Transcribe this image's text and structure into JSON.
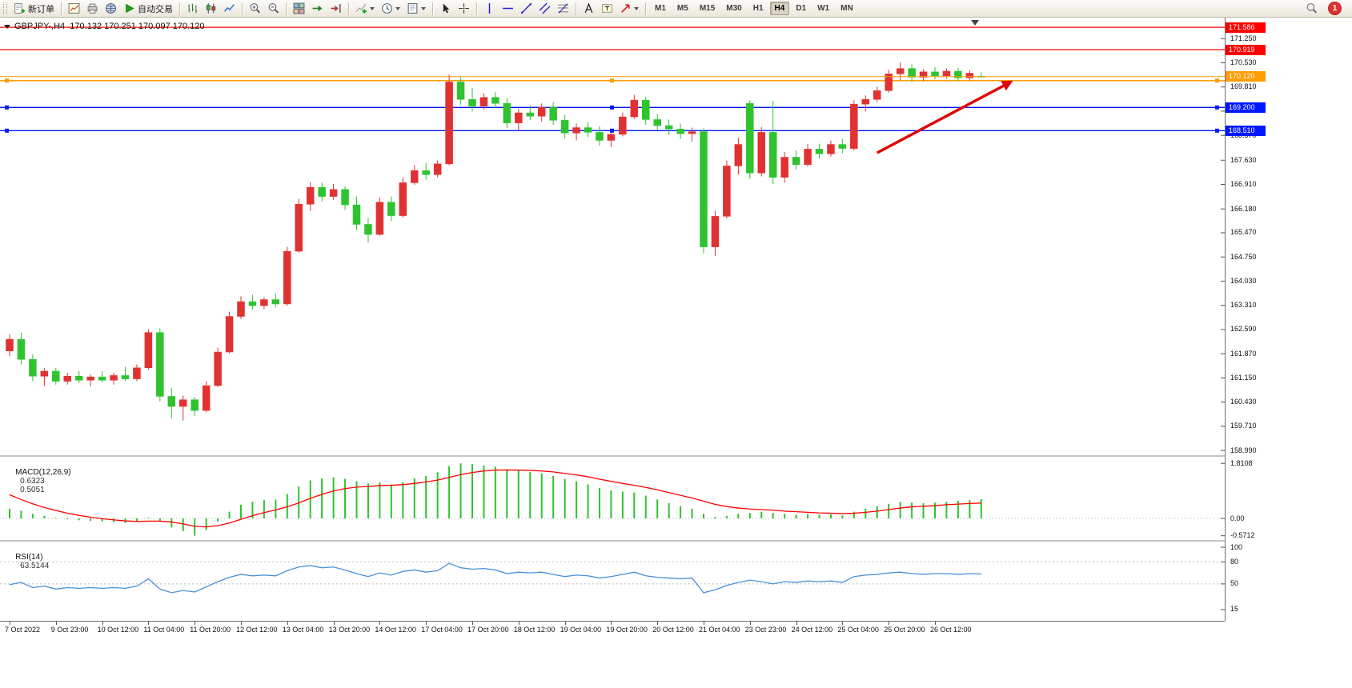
{
  "toolbar": {
    "new_order_label": "新订单",
    "auto_trading_label": "自动交易",
    "notification_count": "1",
    "active_timeframe": "H4",
    "timeframes": [
      {
        "label": "M1"
      },
      {
        "label": "M5"
      },
      {
        "label": "M15"
      },
      {
        "label": "M30"
      },
      {
        "label": "H1"
      },
      {
        "label": "H4"
      },
      {
        "label": "D1"
      },
      {
        "label": "W1"
      },
      {
        "label": "MN"
      }
    ],
    "groups": [
      {
        "items": [
          {
            "name": "new-order-button",
            "icon": "new-order-icon",
            "label": "新订单"
          }
        ]
      },
      {
        "items": [
          {
            "name": "new-chart-button",
            "icon": "chart-window-icon"
          },
          {
            "name": "print-button",
            "icon": "printer-icon"
          },
          {
            "name": "full-screen-button",
            "icon": "globe-icon"
          },
          {
            "name": "auto-trading-button",
            "icon": "play-icon",
            "label": "自动交易"
          }
        ]
      },
      {
        "items": [
          {
            "name": "bar-chart-button",
            "icon": "bar-chart-icon"
          },
          {
            "name": "candlestick-chart-button",
            "icon": "candlestick-icon"
          },
          {
            "name": "line-chart-button",
            "icon": "line-chart-icon"
          }
        ]
      },
      {
        "items": [
          {
            "name": "zoom-in-button",
            "icon": "zoom-in-icon"
          },
          {
            "name": "zoom-out-button",
            "icon": "zoom-out-icon"
          }
        ]
      },
      {
        "items": [
          {
            "name": "tile-windows-button",
            "icon": "tile-windows-icon"
          },
          {
            "name": "auto-scroll-button",
            "icon": "auto-scroll-icon"
          },
          {
            "name": "chart-shift-button",
            "icon": "chart-shift-icon"
          }
        ]
      },
      {
        "items": [
          {
            "name": "indicators-button",
            "icon": "indicators-icon",
            "dropdown": true
          },
          {
            "name": "periods-button",
            "icon": "clock-icon",
            "dropdown": true
          },
          {
            "name": "templates-button",
            "icon": "template-icon",
            "dropdown": true
          }
        ]
      },
      {
        "items": [
          {
            "name": "cursor-button",
            "icon": "cursor-icon"
          },
          {
            "name": "crosshair-button",
            "icon": "crosshair-icon"
          }
        ]
      },
      {
        "items": [
          {
            "name": "vertical-line-button",
            "icon": "vertical-line-icon"
          },
          {
            "name": "horizontal-line-button",
            "icon": "horizontal-line-icon"
          },
          {
            "name": "trendline-button",
            "icon": "trendline-icon"
          },
          {
            "name": "channel-button",
            "icon": "channel-icon"
          },
          {
            "name": "fibonacci-button",
            "icon": "fibonacci-icon"
          }
        ]
      },
      {
        "items": [
          {
            "name": "text-button",
            "icon": "text-icon"
          },
          {
            "name": "text-label-button",
            "icon": "text-label-icon"
          },
          {
            "name": "arrows-button",
            "icon": "arrow-icon",
            "dropdown": true
          }
        ]
      }
    ]
  },
  "colors": {
    "bull": "#e03232",
    "bear": "#2fc32f",
    "line_red": "#ff0000",
    "line_blue": "#0018ff",
    "line_orange": "#ff9c00",
    "macd_histogram": "#2fc32f",
    "macd_signal": "#ff0000",
    "rsi_line": "#4a90d9",
    "arrow": "#e00000"
  },
  "chart_data": {
    "type": "candlestick",
    "symbol": "GBPJPY-",
    "period": "H4",
    "title_text": "GBPJPY-,H4  170.132 170.251 170.097 170.120",
    "ohlc_display": {
      "open": "170.132",
      "high": "170.251",
      "low": "170.097",
      "close": "170.120"
    },
    "bars_per_label": 4,
    "time_labels": [
      "7 Oct 2022",
      "9 Oct 23:00",
      "10 Oct 12:00",
      "11 Oct 04:00",
      "11 Oct 20:00",
      "12 Oct 12:00",
      "13 Oct 04:00",
      "13 Oct 20:00",
      "14 Oct 12:00",
      "17 Oct 04:00",
      "17 Oct 20:00",
      "18 Oct 12:00",
      "19 Oct 04:00",
      "19 Oct 20:00",
      "20 Oct 12:00",
      "21 Oct 04:00",
      "23 Oct 23:00",
      "24 Oct 12:00",
      "25 Oct 04:00",
      "25 Oct 20:00",
      "26 Oct 12:00"
    ],
    "price_axis": {
      "top_price": 171.78,
      "bottom_price": 158.92,
      "ticks": [
        "171.250",
        "170.530",
        "169.810",
        "169.090",
        "168.370",
        "167.630",
        "166.910",
        "166.180",
        "165.470",
        "164.750",
        "164.030",
        "163.310",
        "162.590",
        "161.870",
        "161.150",
        "160.430",
        "159.710",
        "158.990"
      ]
    },
    "price_lines": [
      {
        "name": "resistance-line-upper",
        "price": 171.586,
        "label": "171.586",
        "color": "#ff0000",
        "width": 1.2,
        "handles": false
      },
      {
        "name": "resistance-line-lower",
        "price": 170.919,
        "label": "170.919",
        "color": "#ff0000",
        "width": 1.2,
        "handles": false
      },
      {
        "name": "orange-horizontal-line",
        "price": 170.0,
        "label": null,
        "color": "#ff9c00",
        "width": 1.6,
        "handles": true
      },
      {
        "name": "support-line-upper",
        "price": 169.2,
        "label": "169.200",
        "color": "#0018ff",
        "width": 1.4,
        "handles": true
      },
      {
        "name": "support-line-lower",
        "price": 168.51,
        "label": "168.510",
        "color": "#0018ff",
        "width": 1.4,
        "handles": true
      }
    ],
    "current_price": {
      "label": "170.120",
      "price": 170.12,
      "color": "#ff9c00"
    },
    "trend_arrow": {
      "from_bar": 75,
      "from_price": 167.85,
      "to_bar": 86.5,
      "to_price": 169.95
    },
    "candles": [
      [
        161.95,
        162.45,
        161.8,
        162.3
      ],
      [
        162.3,
        162.5,
        161.55,
        161.7
      ],
      [
        161.7,
        161.85,
        161.05,
        161.2
      ],
      [
        161.2,
        161.45,
        160.9,
        161.35
      ],
      [
        161.35,
        161.45,
        160.95,
        161.05
      ],
      [
        161.05,
        161.3,
        160.95,
        161.2
      ],
      [
        161.2,
        161.35,
        161.0,
        161.08
      ],
      [
        161.08,
        161.25,
        160.9,
        161.18
      ],
      [
        161.18,
        161.35,
        161.02,
        161.08
      ],
      [
        161.08,
        161.3,
        160.95,
        161.22
      ],
      [
        161.22,
        161.48,
        161.05,
        161.12
      ],
      [
        161.12,
        161.55,
        161.05,
        161.45
      ],
      [
        161.45,
        162.6,
        161.4,
        162.5
      ],
      [
        162.5,
        162.62,
        160.45,
        160.6
      ],
      [
        160.6,
        160.85,
        159.95,
        160.3
      ],
      [
        160.3,
        160.62,
        159.88,
        160.5
      ],
      [
        160.5,
        160.58,
        160.02,
        160.18
      ],
      [
        160.18,
        161.05,
        160.12,
        160.92
      ],
      [
        160.92,
        162.05,
        160.88,
        161.92
      ],
      [
        161.92,
        163.12,
        161.88,
        162.98
      ],
      [
        162.98,
        163.58,
        162.9,
        163.42
      ],
      [
        163.42,
        163.62,
        163.18,
        163.3
      ],
      [
        163.3,
        163.55,
        163.2,
        163.48
      ],
      [
        163.48,
        163.66,
        163.25,
        163.35
      ],
      [
        163.35,
        165.05,
        163.3,
        164.92
      ],
      [
        164.92,
        166.48,
        164.88,
        166.32
      ],
      [
        166.32,
        166.98,
        166.12,
        166.82
      ],
      [
        166.82,
        166.96,
        166.4,
        166.55
      ],
      [
        166.55,
        166.92,
        166.45,
        166.76
      ],
      [
        166.76,
        166.85,
        166.15,
        166.3
      ],
      [
        166.3,
        166.55,
        165.55,
        165.72
      ],
      [
        165.72,
        165.92,
        165.18,
        165.42
      ],
      [
        165.42,
        166.52,
        165.38,
        166.38
      ],
      [
        166.38,
        166.55,
        165.82,
        165.98
      ],
      [
        165.98,
        167.12,
        165.92,
        166.96
      ],
      [
        166.96,
        167.48,
        166.9,
        167.32
      ],
      [
        167.32,
        167.55,
        167.05,
        167.2
      ],
      [
        167.2,
        167.62,
        167.12,
        167.52
      ],
      [
        167.52,
        170.18,
        167.48,
        169.96
      ],
      [
        169.96,
        170.12,
        169.28,
        169.44
      ],
      [
        169.44,
        169.78,
        169.08,
        169.24
      ],
      [
        169.24,
        169.62,
        169.14,
        169.5
      ],
      [
        169.5,
        169.66,
        169.18,
        169.32
      ],
      [
        169.32,
        169.48,
        168.58,
        168.74
      ],
      [
        168.74,
        169.16,
        168.52,
        169.04
      ],
      [
        169.04,
        169.26,
        168.82,
        168.94
      ],
      [
        168.94,
        169.32,
        168.78,
        169.2
      ],
      [
        169.2,
        169.36,
        168.68,
        168.82
      ],
      [
        168.82,
        168.98,
        168.28,
        168.44
      ],
      [
        168.44,
        168.72,
        168.22,
        168.6
      ],
      [
        168.6,
        168.76,
        168.32,
        168.46
      ],
      [
        168.46,
        168.64,
        168.06,
        168.22
      ],
      [
        168.22,
        168.52,
        168.02,
        168.4
      ],
      [
        168.4,
        169.05,
        168.34,
        168.92
      ],
      [
        168.92,
        169.58,
        168.86,
        169.42
      ],
      [
        169.42,
        169.52,
        168.68,
        168.84
      ],
      [
        168.84,
        169.0,
        168.52,
        168.66
      ],
      [
        168.66,
        168.84,
        168.38,
        168.56
      ],
      [
        168.56,
        168.72,
        168.26,
        168.42
      ],
      [
        168.42,
        168.6,
        168.18,
        168.48
      ],
      [
        168.48,
        168.58,
        164.85,
        165.05
      ],
      [
        165.05,
        166.12,
        164.78,
        165.96
      ],
      [
        165.96,
        167.62,
        165.9,
        167.46
      ],
      [
        167.46,
        168.3,
        167.2,
        168.1
      ],
      [
        169.32,
        169.42,
        167.08,
        167.25
      ],
      [
        167.25,
        168.62,
        167.15,
        168.46
      ],
      [
        168.46,
        169.4,
        166.92,
        167.12
      ],
      [
        167.12,
        167.88,
        166.96,
        167.72
      ],
      [
        167.72,
        167.92,
        167.35,
        167.5
      ],
      [
        167.5,
        168.12,
        167.44,
        167.96
      ],
      [
        167.96,
        168.12,
        167.68,
        167.82
      ],
      [
        167.82,
        168.22,
        167.74,
        168.1
      ],
      [
        168.1,
        168.26,
        167.84,
        167.98
      ],
      [
        167.98,
        169.42,
        167.92,
        169.3
      ],
      [
        169.3,
        169.56,
        169.08,
        169.44
      ],
      [
        169.44,
        169.82,
        169.36,
        169.7
      ],
      [
        169.7,
        170.32,
        169.64,
        170.2
      ],
      [
        170.2,
        170.55,
        170.02,
        170.36
      ],
      [
        170.36,
        170.48,
        169.96,
        170.1
      ],
      [
        170.1,
        170.34,
        169.98,
        170.26
      ],
      [
        170.26,
        170.4,
        170.04,
        170.14
      ],
      [
        170.14,
        170.36,
        170.06,
        170.28
      ],
      [
        170.28,
        170.38,
        169.98,
        170.08
      ],
      [
        170.08,
        170.3,
        170.0,
        170.22
      ],
      [
        170.132,
        170.251,
        170.097,
        170.12
      ]
    ],
    "indicators": {
      "macd": {
        "label": "MACD(12,26,9)",
        "value_main": "0.6323",
        "value_signal": "0.5051",
        "axis": [
          "1.8108",
          "0.00",
          "-0.5712"
        ],
        "histogram": [
          0.32,
          0.25,
          0.15,
          0.08,
          0.02,
          -0.03,
          -0.06,
          -0.08,
          -0.1,
          -0.12,
          -0.15,
          -0.12,
          0.02,
          -0.1,
          -0.3,
          -0.42,
          -0.57,
          -0.38,
          -0.1,
          0.22,
          0.45,
          0.55,
          0.6,
          0.62,
          0.8,
          1.05,
          1.25,
          1.32,
          1.35,
          1.3,
          1.22,
          1.15,
          1.18,
          1.12,
          1.2,
          1.32,
          1.4,
          1.52,
          1.72,
          1.81,
          1.78,
          1.74,
          1.7,
          1.62,
          1.58,
          1.52,
          1.48,
          1.4,
          1.3,
          1.22,
          1.12,
          1.0,
          0.92,
          0.88,
          0.85,
          0.75,
          0.62,
          0.5,
          0.4,
          0.32,
          0.15,
          0.05,
          0.08,
          0.15,
          0.18,
          0.22,
          0.18,
          0.15,
          0.12,
          0.14,
          0.12,
          0.13,
          0.1,
          0.22,
          0.32,
          0.4,
          0.48,
          0.55,
          0.52,
          0.5,
          0.52,
          0.55,
          0.58,
          0.6,
          0.6323
        ],
        "signal": [
          0.78,
          0.62,
          0.48,
          0.36,
          0.26,
          0.17,
          0.1,
          0.04,
          -0.01,
          -0.05,
          -0.08,
          -0.1,
          -0.09,
          -0.09,
          -0.12,
          -0.18,
          -0.26,
          -0.28,
          -0.24,
          -0.15,
          -0.03,
          0.09,
          0.19,
          0.28,
          0.38,
          0.51,
          0.66,
          0.79,
          0.9,
          0.98,
          1.03,
          1.05,
          1.08,
          1.09,
          1.11,
          1.15,
          1.2,
          1.26,
          1.35,
          1.44,
          1.51,
          1.56,
          1.59,
          1.59,
          1.59,
          1.58,
          1.56,
          1.53,
          1.48,
          1.43,
          1.37,
          1.29,
          1.22,
          1.15,
          1.09,
          1.02,
          0.94,
          0.85,
          0.76,
          0.67,
          0.57,
          0.46,
          0.39,
          0.34,
          0.31,
          0.29,
          0.27,
          0.24,
          0.22,
          0.2,
          0.18,
          0.17,
          0.16,
          0.17,
          0.2,
          0.24,
          0.29,
          0.34,
          0.38,
          0.4,
          0.42,
          0.45,
          0.47,
          0.49,
          0.5051
        ]
      },
      "rsi": {
        "label": "RSI(14)",
        "value": "63.5144",
        "axis": [
          "100",
          "80",
          "50",
          "15"
        ],
        "levels": [
          80,
          50
        ],
        "values": [
          49,
          52,
          45,
          47,
          43,
          45,
          44,
          45,
          44,
          45,
          44,
          47,
          57,
          43,
          38,
          41,
          39,
          46,
          53,
          59,
          63,
          61,
          62,
          61,
          68,
          73,
          75,
          72,
          73,
          69,
          64,
          60,
          65,
          62,
          67,
          69,
          66,
          68,
          78,
          72,
          70,
          71,
          69,
          64,
          66,
          65,
          66,
          63,
          60,
          62,
          61,
          58,
          60,
          63,
          66,
          61,
          59,
          58,
          57,
          58,
          38,
          42,
          48,
          52,
          55,
          53,
          50,
          53,
          52,
          54,
          53,
          54,
          52,
          60,
          62,
          63,
          65,
          66,
          64,
          63,
          64,
          64,
          63,
          64,
          63.5144
        ]
      }
    }
  }
}
